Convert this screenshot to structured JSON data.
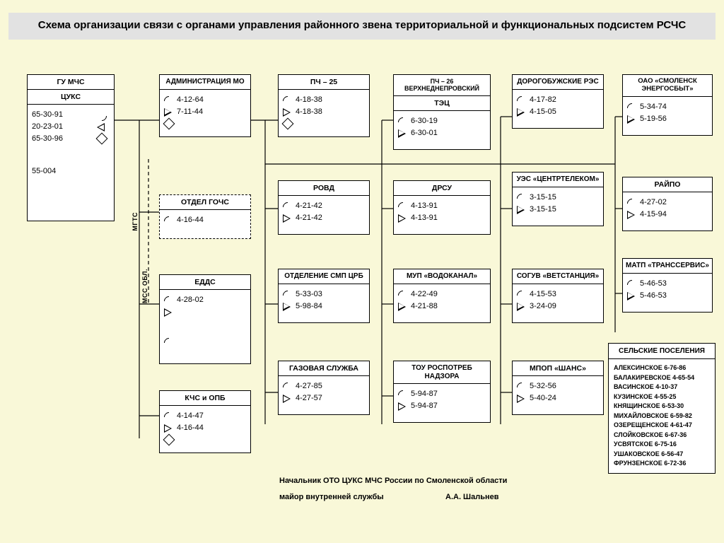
{
  "title": "Схема организации связи с органами управления районного звена территориальной и функциональных подсистем РСЧС",
  "background_color": "#f9f8d8",
  "titlebar_color": "#e2e2e2",
  "gu_mchs": {
    "title": "ГУ МЧС",
    "sub": "ЦУКС",
    "phones_left": [
      "65-30-91",
      "20-23-01",
      "65-30-96"
    ],
    "phone_bottom": "55-004"
  },
  "admin": {
    "title": "АДМИНИСТРАЦИЯ МО",
    "phones": [
      "4-12-64",
      "7-11-44"
    ]
  },
  "gochs": {
    "title": "ОТДЕЛ ГОЧС",
    "phones": [
      "4-16-44"
    ]
  },
  "edds": {
    "title": "ЕДДС",
    "phones": [
      "4-28-02"
    ]
  },
  "kchs": {
    "title": "КЧС и ОПБ",
    "phones": [
      "4-14-47",
      "4-16-44"
    ]
  },
  "pch25": {
    "title": "ПЧ – 25",
    "phones": [
      "4-18-38",
      "4-18-38"
    ]
  },
  "rovd": {
    "title": "РОВД",
    "phones": [
      "4-21-42",
      "4-21-42"
    ]
  },
  "smp": {
    "title": "ОТДЕЛЕНИЕ СМП ЦРБ",
    "phones": [
      "5-33-03",
      "5-98-84"
    ]
  },
  "gaz": {
    "title": "ГАЗОВАЯ СЛУЖБА",
    "phones": [
      "4-27-85",
      "4-27-57"
    ]
  },
  "pch26": {
    "title": "ПЧ – 26 ВЕРХНЕДНЕПРОВСКИЙ",
    "sub": "ТЭЦ",
    "phones": [
      "6-30-19",
      "6-30-01"
    ]
  },
  "drsu": {
    "title": "ДРСУ",
    "phones": [
      "4-13-91",
      "4-13-91"
    ]
  },
  "vodokanal": {
    "title": "МУП «ВОДОКАНАЛ»",
    "phones": [
      "4-22-49",
      "4-21-88"
    ]
  },
  "rospotreb": {
    "title": "ТОУ РОСПОТРЕБ НАДЗОРА",
    "phones": [
      "5-94-87",
      "5-94-87"
    ]
  },
  "res": {
    "title": "ДОРОГОБУЖСКИЕ РЭС",
    "phones": [
      "4-17-82",
      "4-15-05"
    ]
  },
  "ues": {
    "title": "УЭС «ЦЕНТРТЕЛЕКОМ»",
    "phones": [
      "3-15-15",
      "3-15-15"
    ]
  },
  "vet": {
    "title": "СОГУВ «ВЕТСТАНЦИЯ»",
    "phones": [
      "4-15-53",
      "3-24-09"
    ]
  },
  "shans": {
    "title": "МПОП «ШАНС»",
    "phones": [
      "5-32-56",
      "5-40-24"
    ]
  },
  "energo": {
    "title": "ОАО «СМОЛЕНСК ЭНЕРГОСБЫТ»",
    "phones": [
      "5-34-74",
      "5-19-56"
    ]
  },
  "raipo": {
    "title": "РАЙПО",
    "phones": [
      "4-27-02",
      "4-15-94"
    ]
  },
  "matp": {
    "title": "МАТП «ТРАНССЕРВИС»",
    "phones": [
      "5-46-53",
      "5-46-53"
    ]
  },
  "settlements": {
    "title": "СЕЛЬСКИЕ ПОСЕЛЕНИЯ",
    "items": [
      "АЛЕКСИНСКОЕ 6-76-86",
      "БАЛАКИРЕВСКОЕ 4-65-54",
      "ВАСИНСКОЕ 4-10-37",
      "КУЗИНСКОЕ 4-55-25",
      "КНЯЩИНСКОЕ 6-53-30",
      "МИХАЙЛОВСКОЕ 6-59-82",
      "ОЗЕРЕЩЕНСКОЕ 4-61-47",
      "СЛОЙКОВСКОЕ 6-67-36",
      "УСВЯТСКОЕ 6-75-16",
      "УШАКОВСКОЕ 6-56-47",
      "ФРУНЗЕНСКОЕ 6-72-36"
    ]
  },
  "labels": {
    "mgts": "МГТС",
    "mss": "МСС ОБЛ."
  },
  "signature": {
    "line1": "Начальник ОТО ЦУКС МЧС России по Смоленской области",
    "line2a": "майор внутренней службы",
    "line2b": "А.А. Шальнев"
  }
}
